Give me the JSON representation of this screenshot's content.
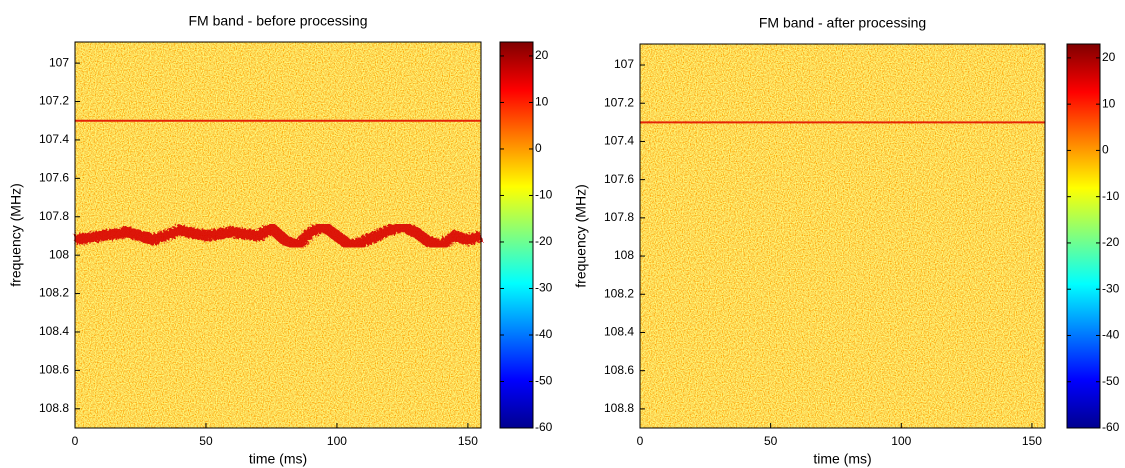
{
  "chart_data": [
    {
      "type": "spectrogram",
      "title": "FM band - before processing",
      "xlabel": "time (ms)",
      "ylabel": "frequency (MHz)",
      "xlim": [
        0,
        155
      ],
      "xticks": [
        0,
        50,
        100,
        150
      ],
      "ylim": [
        106.89,
        108.9
      ],
      "y_reversed": true,
      "yticks": [
        107,
        107.2,
        107.4,
        107.6,
        107.8,
        108,
        108.2,
        108.4,
        108.6,
        108.8
      ],
      "colormap": "jet",
      "clim": [
        -60,
        23
      ],
      "cticks": [
        -60,
        -50,
        -40,
        -30,
        -20,
        -10,
        0,
        10,
        20
      ],
      "series": [
        {
          "color": "#e01000",
          "width": 2,
          "x": [
            0,
            155
          ],
          "values": [
            107.3,
            107.3
          ]
        },
        {
          "color": "#d80000",
          "width": 11,
          "x": [
            0,
            10,
            20,
            30,
            40,
            50,
            60,
            70,
            75,
            80,
            85,
            90,
            95,
            100,
            105,
            110,
            115,
            120,
            125,
            130,
            135,
            140,
            145,
            150,
            155
          ],
          "values": [
            107.92,
            107.9,
            107.88,
            107.92,
            107.87,
            107.9,
            107.88,
            107.9,
            107.86,
            107.92,
            107.95,
            107.88,
            107.85,
            107.9,
            107.95,
            107.93,
            107.9,
            107.87,
            107.85,
            107.88,
            107.93,
            107.95,
            107.9,
            107.92,
            107.9
          ]
        }
      ]
    },
    {
      "type": "spectrogram",
      "title": "FM band - after processing",
      "xlabel": "time (ms)",
      "ylabel": "frequency (MHz)",
      "xlim": [
        0,
        155
      ],
      "xticks": [
        0,
        50,
        100,
        150
      ],
      "ylim": [
        106.89,
        108.9
      ],
      "y_reversed": true,
      "yticks": [
        107,
        107.2,
        107.4,
        107.6,
        107.8,
        108,
        108.2,
        108.4,
        108.6,
        108.8
      ],
      "colormap": "jet",
      "clim": [
        -60,
        23
      ],
      "cticks": [
        -60,
        -50,
        -40,
        -30,
        -20,
        -10,
        0,
        10,
        20
      ],
      "series": [
        {
          "color": "#e01000",
          "width": 2,
          "x": [
            0,
            155
          ],
          "values": [
            107.3,
            107.3
          ]
        }
      ]
    }
  ]
}
